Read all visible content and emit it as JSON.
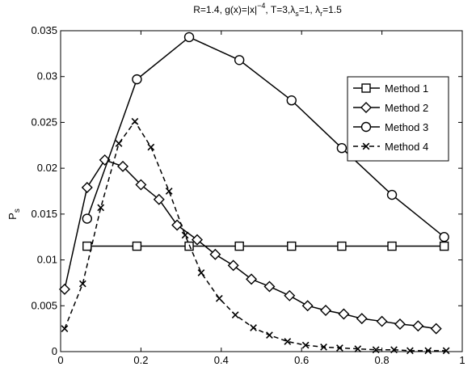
{
  "chart_data": {
    "type": "line",
    "title_parts": {
      "p1": "R=1.4, g(x)=|x|",
      "p1_sup": "−4",
      "p2": ", T=3,λ",
      "p2_sub": "s",
      "p3": "=1, λ",
      "p3_sub": "r",
      "p4": "=1.5"
    },
    "ylabel": "P",
    "ylabel_sub": "s",
    "xlim": [
      0,
      1
    ],
    "ylim": [
      0,
      0.035
    ],
    "x_ticks": [
      "0",
      "0.2",
      "0.4",
      "0.6",
      "0.8",
      "1"
    ],
    "y_ticks": [
      "0",
      "0.005",
      "0.01",
      "0.015",
      "0.02",
      "0.025",
      "0.03",
      "0.035"
    ],
    "grid": false,
    "legend_position": "top-right",
    "series": [
      {
        "name": "Method 1",
        "marker": "square",
        "line": "solid",
        "x": [
          0.066,
          0.19,
          0.32,
          0.445,
          0.575,
          0.7,
          0.825,
          0.955
        ],
        "y": [
          0.0115,
          0.0115,
          0.0115,
          0.0115,
          0.0115,
          0.0115,
          0.0115,
          0.0115
        ]
      },
      {
        "name": "Method 2",
        "marker": "diamond",
        "line": "solid",
        "x": [
          0.01,
          0.066,
          0.11,
          0.155,
          0.2,
          0.245,
          0.29,
          0.34,
          0.385,
          0.43,
          0.475,
          0.52,
          0.57,
          0.615,
          0.66,
          0.705,
          0.75,
          0.8,
          0.845,
          0.89,
          0.935
        ],
        "y": [
          0.0068,
          0.0179,
          0.0209,
          0.0202,
          0.0182,
          0.0166,
          0.0138,
          0.0122,
          0.0106,
          0.0094,
          0.0079,
          0.0071,
          0.0061,
          0.005,
          0.0045,
          0.0041,
          0.0036,
          0.0033,
          0.003,
          0.0028,
          0.0025
        ]
      },
      {
        "name": "Method 3",
        "marker": "circle",
        "line": "solid",
        "x": [
          0.066,
          0.19,
          0.32,
          0.445,
          0.575,
          0.7,
          0.825,
          0.955
        ],
        "y": [
          0.0145,
          0.0297,
          0.0343,
          0.0318,
          0.0274,
          0.0222,
          0.0171,
          0.0125
        ]
      },
      {
        "name": "Method 4",
        "marker": "x",
        "line": "dashed",
        "x": [
          0.01,
          0.055,
          0.1,
          0.145,
          0.185,
          0.225,
          0.27,
          0.31,
          0.35,
          0.395,
          0.435,
          0.48,
          0.52,
          0.565,
          0.61,
          0.655,
          0.695,
          0.74,
          0.785,
          0.83,
          0.87,
          0.915,
          0.96
        ],
        "y": [
          0.0025,
          0.0074,
          0.0157,
          0.0227,
          0.0251,
          0.0223,
          0.0175,
          0.0127,
          0.0086,
          0.0058,
          0.004,
          0.0026,
          0.0018,
          0.0011,
          0.0007,
          0.0005,
          0.0004,
          0.0003,
          0.0002,
          0.0002,
          0.0001,
          0.0001,
          0.0001
        ]
      }
    ]
  }
}
